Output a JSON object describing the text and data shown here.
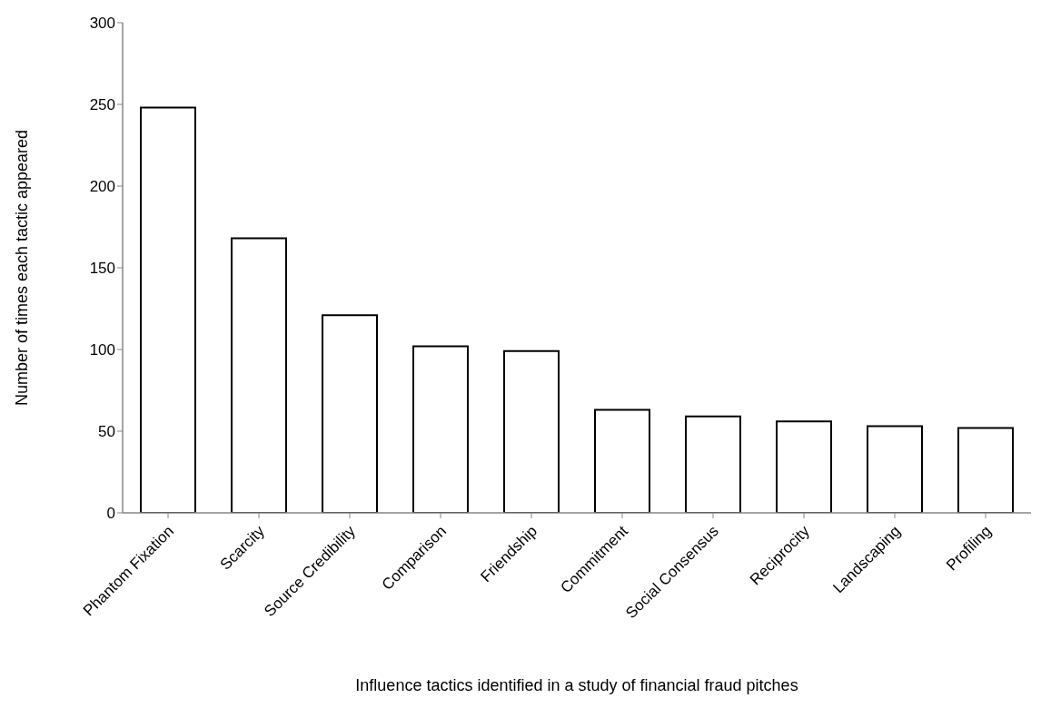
{
  "chart_data": {
    "type": "bar",
    "xlabel": "Influence tactics identified in a study of financial fraud pitches",
    "ylabel": "Number of times each tactic appeared",
    "categories": [
      "Phantom Fixation",
      "Scarcity",
      "Source Credibility",
      "Comparison",
      "Friendship",
      "Commitment",
      "Social Consensus",
      "Reciprocity",
      "Landscaping",
      "Profiling"
    ],
    "values": [
      248,
      168,
      121,
      102,
      99,
      63,
      59,
      56,
      53,
      52
    ],
    "color": "#ffffff",
    "ylim": [
      0,
      300
    ],
    "yticks": [
      0,
      50,
      100,
      150,
      200,
      250,
      300
    ],
    "grid": false,
    "legend": false
  }
}
